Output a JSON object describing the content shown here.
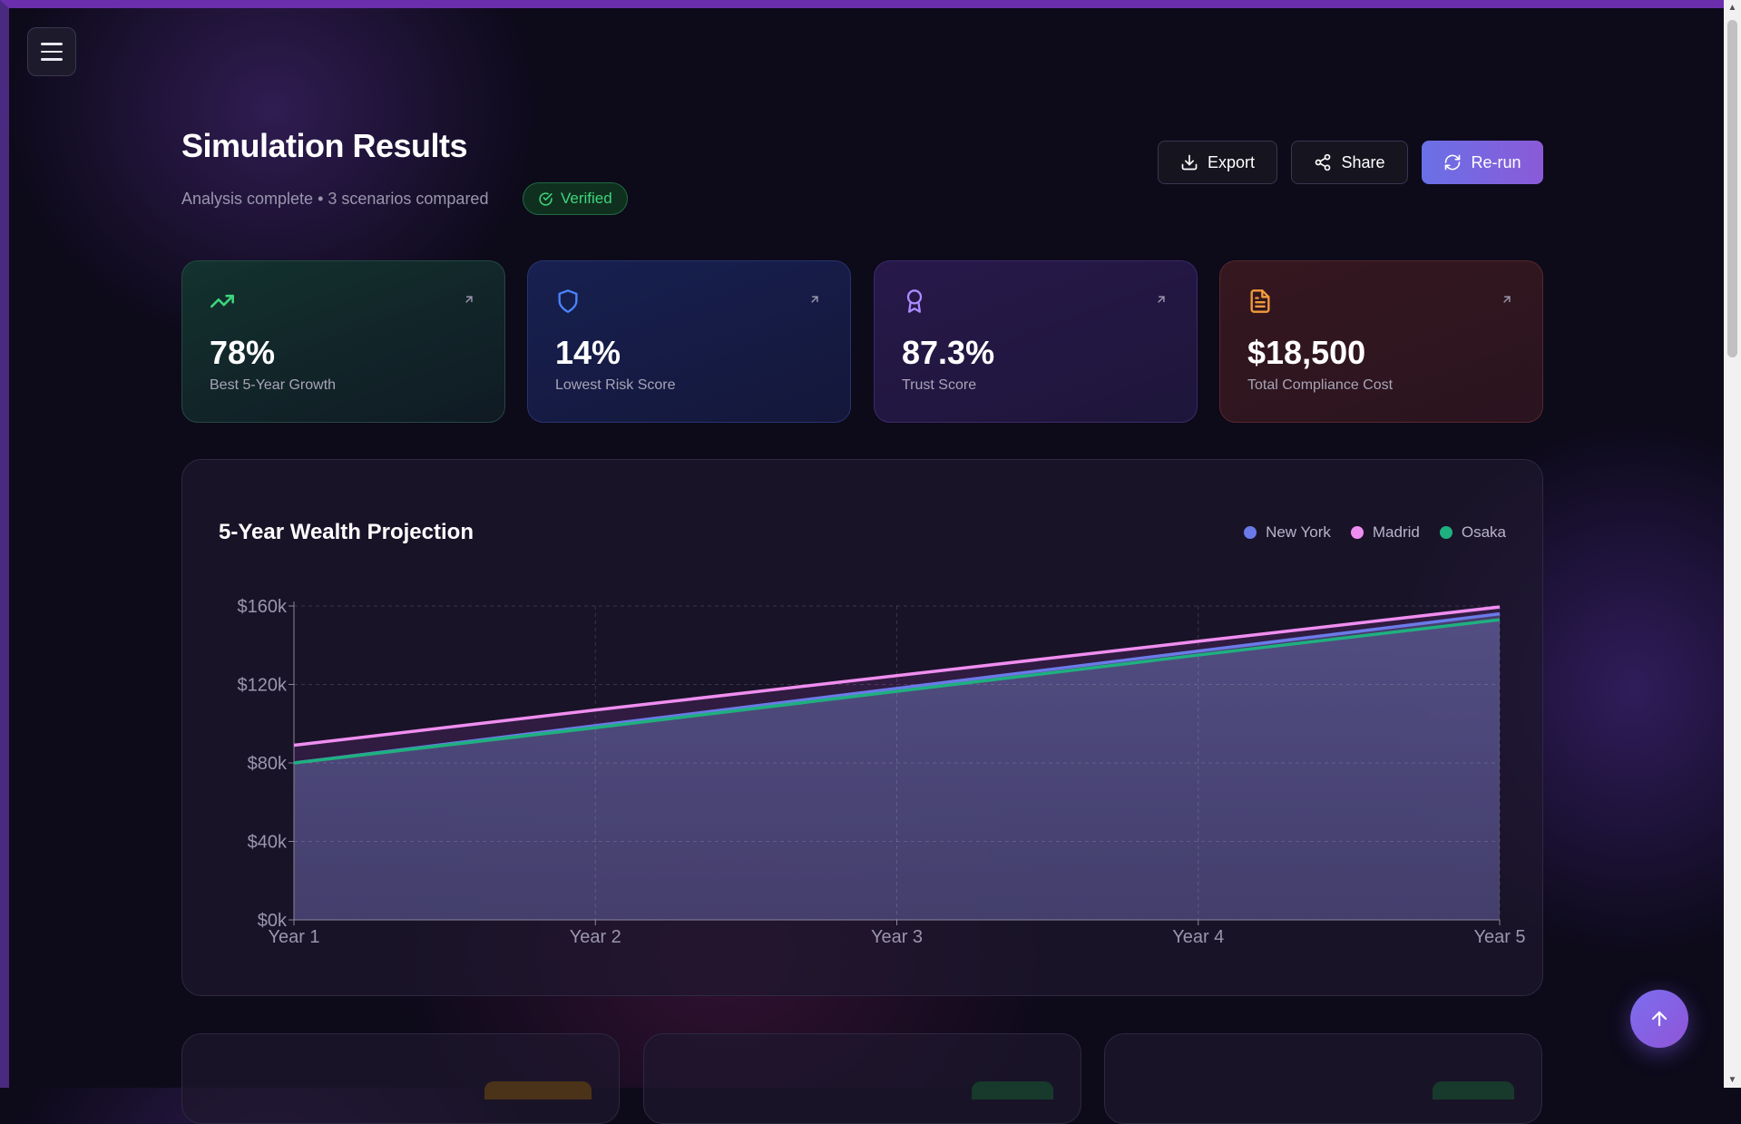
{
  "header": {
    "title": "Simulation Results",
    "subtitle": "Analysis complete • 3 scenarios compared",
    "badge": "Verified"
  },
  "actions": {
    "export": "Export",
    "share": "Share",
    "rerun": "Re-run"
  },
  "stats": [
    {
      "value": "78%",
      "label": "Best 5-Year Growth",
      "icon": "trending-up-icon",
      "color": "#3ed57c"
    },
    {
      "value": "14%",
      "label": "Lowest Risk Score",
      "icon": "shield-icon",
      "color": "#4a84ff"
    },
    {
      "value": "87.3%",
      "label": "Trust Score",
      "icon": "award-icon",
      "color": "#a98bff"
    },
    {
      "value": "$18,500",
      "label": "Total Compliance Cost",
      "icon": "document-icon",
      "color": "#f29a3b"
    }
  ],
  "chart_title": "5-Year Wealth Projection",
  "chart_data": {
    "type": "area",
    "x": [
      "Year 1",
      "Year 2",
      "Year 3",
      "Year 4",
      "Year 5"
    ],
    "series": [
      {
        "name": "New York",
        "color": "#6b7ae8",
        "values": [
          80000,
          99000,
          118000,
          137000,
          156000
        ]
      },
      {
        "name": "Madrid",
        "color": "#f08ef0",
        "values": [
          89000,
          107000,
          124500,
          142000,
          159500
        ]
      },
      {
        "name": "Osaka",
        "color": "#1fb07f",
        "values": [
          80000,
          98000,
          116500,
          135000,
          153000
        ]
      }
    ],
    "yticks": [
      "$0k",
      "$40k",
      "$80k",
      "$120k",
      "$160k"
    ],
    "ylim": [
      0,
      160000
    ],
    "grid": true,
    "legend": "top-right"
  },
  "colors": {
    "accent": "#7c6ef0",
    "verified": "#3ed57c"
  }
}
